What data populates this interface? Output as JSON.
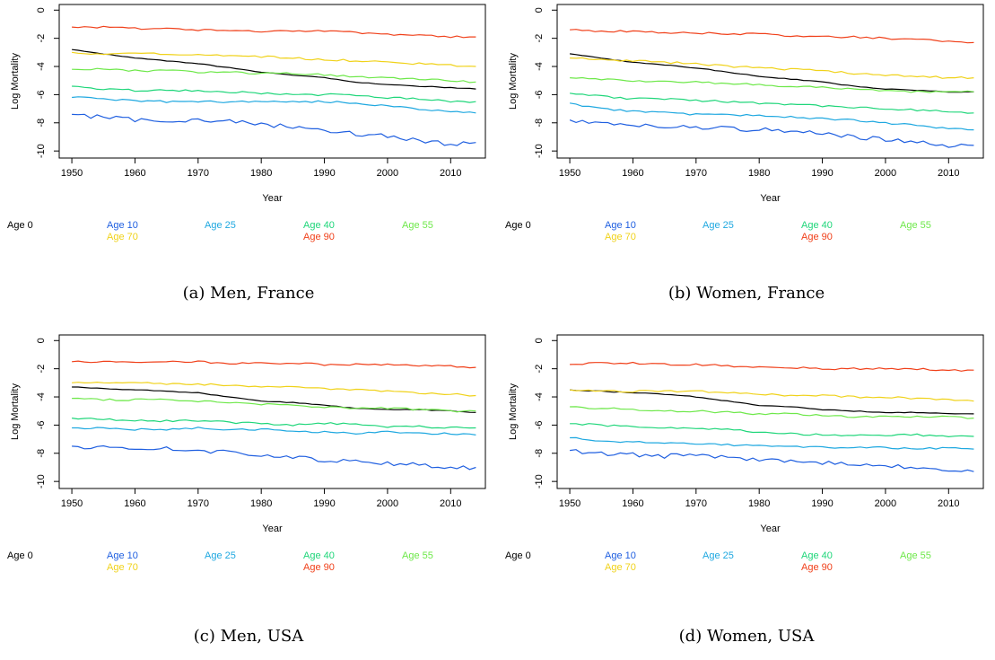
{
  "figure": {
    "xlabel": "Year",
    "ylabel": "Log Mortality",
    "xticks": [
      1950,
      1960,
      1970,
      1980,
      1990,
      2000,
      2010
    ],
    "yticks": [
      0,
      -2,
      -4,
      -6,
      -8,
      -10
    ],
    "xlim": [
      1948,
      2015.5
    ],
    "ylim": [
      -10.5,
      0.4
    ]
  },
  "chart_data": [
    {
      "type": "line",
      "caption": "(a) Men, France",
      "xlabel": "Year",
      "ylabel": "Log Mortality",
      "xlim": [
        1948,
        2015.5
      ],
      "ylim": [
        -10.5,
        0.4
      ],
      "x_range": [
        1950,
        2014
      ],
      "legend": "bottom",
      "series": [
        {
          "name": "Age 0",
          "color": "#000000",
          "x": [
            1950,
            1955,
            1960,
            1965,
            1970,
            1975,
            1980,
            1985,
            1990,
            1995,
            2000,
            2005,
            2010,
            2014
          ],
          "values": [
            -2.8,
            -3.1,
            -3.4,
            -3.6,
            -3.8,
            -4.1,
            -4.4,
            -4.6,
            -4.8,
            -5.1,
            -5.3,
            -5.4,
            -5.5,
            -5.6
          ]
        },
        {
          "name": "Age 10",
          "color": "#1f5fe0",
          "x": [
            1950,
            1955,
            1960,
            1965,
            1970,
            1975,
            1980,
            1985,
            1990,
            1995,
            2000,
            2005,
            2010,
            2014
          ],
          "values": [
            -7.4,
            -7.6,
            -7.8,
            -7.8,
            -7.8,
            -7.9,
            -8.1,
            -8.3,
            -8.5,
            -8.8,
            -8.9,
            -9.3,
            -9.5,
            -9.4
          ]
        },
        {
          "name": "Age 25",
          "color": "#1fa8e0",
          "x": [
            1950,
            1955,
            1960,
            1965,
            1970,
            1975,
            1980,
            1985,
            1990,
            1995,
            2000,
            2005,
            2010,
            2014
          ],
          "values": [
            -6.2,
            -6.3,
            -6.4,
            -6.5,
            -6.5,
            -6.5,
            -6.5,
            -6.5,
            -6.5,
            -6.6,
            -6.8,
            -7.0,
            -7.2,
            -7.3
          ]
        },
        {
          "name": "Age 40",
          "color": "#1fd67a",
          "x": [
            1950,
            1955,
            1960,
            1965,
            1970,
            1975,
            1980,
            1985,
            1990,
            1995,
            2000,
            2005,
            2010,
            2014
          ],
          "values": [
            -5.4,
            -5.6,
            -5.7,
            -5.7,
            -5.7,
            -5.8,
            -5.9,
            -6.0,
            -6.0,
            -6.0,
            -6.2,
            -6.3,
            -6.5,
            -6.5
          ]
        },
        {
          "name": "Age 55",
          "color": "#6ee84a",
          "x": [
            1950,
            1955,
            1960,
            1965,
            1970,
            1975,
            1980,
            1985,
            1990,
            1995,
            2000,
            2005,
            2010,
            2014
          ],
          "values": [
            -4.2,
            -4.2,
            -4.3,
            -4.3,
            -4.4,
            -4.4,
            -4.5,
            -4.5,
            -4.6,
            -4.7,
            -4.8,
            -4.9,
            -5.0,
            -5.1
          ]
        },
        {
          "name": "Age 70",
          "color": "#f0d21a",
          "x": [
            1950,
            1955,
            1960,
            1965,
            1970,
            1975,
            1980,
            1985,
            1990,
            1995,
            2000,
            2005,
            2010,
            2014
          ],
          "values": [
            -3.0,
            -3.1,
            -3.1,
            -3.1,
            -3.2,
            -3.2,
            -3.3,
            -3.4,
            -3.5,
            -3.6,
            -3.7,
            -3.8,
            -3.9,
            -4.0
          ]
        },
        {
          "name": "Age 90",
          "color": "#f0401a",
          "x": [
            1950,
            1955,
            1960,
            1965,
            1970,
            1975,
            1980,
            1985,
            1990,
            1995,
            2000,
            2005,
            2010,
            2014
          ],
          "values": [
            -1.2,
            -1.2,
            -1.3,
            -1.3,
            -1.4,
            -1.4,
            -1.5,
            -1.5,
            -1.5,
            -1.6,
            -1.7,
            -1.8,
            -1.9,
            -1.9
          ]
        }
      ]
    },
    {
      "type": "line",
      "caption": "(b) Women, France",
      "xlabel": "Year",
      "ylabel": "Log Mortality",
      "xlim": [
        1948,
        2015.5
      ],
      "ylim": [
        -10.5,
        0.4
      ],
      "x_range": [
        1950,
        2014
      ],
      "legend": "bottom",
      "series": [
        {
          "name": "Age 0",
          "color": "#000000",
          "x": [
            1950,
            1955,
            1960,
            1965,
            1970,
            1975,
            1980,
            1985,
            1990,
            1995,
            2000,
            2005,
            2010,
            2014
          ],
          "values": [
            -3.1,
            -3.4,
            -3.7,
            -3.9,
            -4.1,
            -4.4,
            -4.7,
            -4.9,
            -5.1,
            -5.4,
            -5.6,
            -5.7,
            -5.8,
            -5.8
          ]
        },
        {
          "name": "Age 10",
          "color": "#1f5fe0",
          "x": [
            1950,
            1955,
            1960,
            1965,
            1970,
            1975,
            1980,
            1985,
            1990,
            1995,
            2000,
            2005,
            2010,
            2014
          ],
          "values": [
            -7.8,
            -8.0,
            -8.2,
            -8.3,
            -8.3,
            -8.4,
            -8.5,
            -8.6,
            -8.8,
            -9.0,
            -9.2,
            -9.4,
            -9.6,
            -9.6
          ]
        },
        {
          "name": "Age 25",
          "color": "#1fa8e0",
          "x": [
            1950,
            1955,
            1960,
            1965,
            1970,
            1975,
            1980,
            1985,
            1990,
            1995,
            2000,
            2005,
            2010,
            2014
          ],
          "values": [
            -6.6,
            -7.0,
            -7.2,
            -7.3,
            -7.4,
            -7.4,
            -7.5,
            -7.6,
            -7.7,
            -7.8,
            -8.0,
            -8.2,
            -8.4,
            -8.5
          ]
        },
        {
          "name": "Age 40",
          "color": "#1fd67a",
          "x": [
            1950,
            1955,
            1960,
            1965,
            1970,
            1975,
            1980,
            1985,
            1990,
            1995,
            2000,
            2005,
            2010,
            2014
          ],
          "values": [
            -5.9,
            -6.1,
            -6.3,
            -6.3,
            -6.4,
            -6.5,
            -6.6,
            -6.7,
            -6.8,
            -6.9,
            -7.0,
            -7.1,
            -7.2,
            -7.3
          ]
        },
        {
          "name": "Age 55",
          "color": "#6ee84a",
          "x": [
            1950,
            1955,
            1960,
            1965,
            1970,
            1975,
            1980,
            1985,
            1990,
            1995,
            2000,
            2005,
            2010,
            2014
          ],
          "values": [
            -4.8,
            -4.9,
            -5.0,
            -5.1,
            -5.1,
            -5.2,
            -5.3,
            -5.4,
            -5.5,
            -5.6,
            -5.7,
            -5.8,
            -5.8,
            -5.8
          ]
        },
        {
          "name": "Age 70",
          "color": "#f0d21a",
          "x": [
            1950,
            1955,
            1960,
            1965,
            1970,
            1975,
            1980,
            1985,
            1990,
            1995,
            2000,
            2005,
            2010,
            2014
          ],
          "values": [
            -3.4,
            -3.5,
            -3.6,
            -3.7,
            -3.8,
            -4.0,
            -4.1,
            -4.2,
            -4.3,
            -4.5,
            -4.6,
            -4.7,
            -4.8,
            -4.8
          ]
        },
        {
          "name": "Age 90",
          "color": "#f0401a",
          "x": [
            1950,
            1955,
            1960,
            1965,
            1970,
            1975,
            1980,
            1985,
            1990,
            1995,
            2000,
            2005,
            2010,
            2014
          ],
          "values": [
            -1.4,
            -1.5,
            -1.5,
            -1.6,
            -1.6,
            -1.7,
            -1.7,
            -1.8,
            -1.9,
            -1.9,
            -2.0,
            -2.1,
            -2.2,
            -2.3
          ]
        }
      ]
    },
    {
      "type": "line",
      "caption": "(c) Men, USA",
      "xlabel": "Year",
      "ylabel": "Log Mortality",
      "xlim": [
        1948,
        2015.5
      ],
      "ylim": [
        -10.5,
        0.4
      ],
      "x_range": [
        1950,
        2014
      ],
      "legend": "bottom",
      "series": [
        {
          "name": "Age 0",
          "color": "#000000",
          "x": [
            1950,
            1955,
            1960,
            1965,
            1970,
            1975,
            1980,
            1985,
            1990,
            1995,
            2000,
            2005,
            2010,
            2014
          ],
          "values": [
            -3.3,
            -3.4,
            -3.5,
            -3.6,
            -3.7,
            -4.0,
            -4.3,
            -4.4,
            -4.6,
            -4.8,
            -4.9,
            -4.9,
            -5.0,
            -5.1
          ]
        },
        {
          "name": "Age 10",
          "color": "#1f5fe0",
          "x": [
            1950,
            1955,
            1960,
            1965,
            1970,
            1975,
            1980,
            1985,
            1990,
            1995,
            2000,
            2005,
            2010,
            2014
          ],
          "values": [
            -7.5,
            -7.6,
            -7.7,
            -7.7,
            -7.8,
            -7.9,
            -8.1,
            -8.3,
            -8.5,
            -8.6,
            -8.7,
            -8.8,
            -9.0,
            -9.0
          ]
        },
        {
          "name": "Age 25",
          "color": "#1fa8e0",
          "x": [
            1950,
            1955,
            1960,
            1965,
            1970,
            1975,
            1980,
            1985,
            1990,
            1995,
            2000,
            2005,
            2010,
            2014
          ],
          "values": [
            -6.2,
            -6.2,
            -6.3,
            -6.3,
            -6.2,
            -6.3,
            -6.3,
            -6.4,
            -6.5,
            -6.6,
            -6.5,
            -6.6,
            -6.6,
            -6.7
          ]
        },
        {
          "name": "Age 40",
          "color": "#1fd67a",
          "x": [
            1950,
            1955,
            1960,
            1965,
            1970,
            1975,
            1980,
            1985,
            1990,
            1995,
            2000,
            2005,
            2010,
            2014
          ],
          "values": [
            -5.5,
            -5.6,
            -5.7,
            -5.7,
            -5.7,
            -5.8,
            -5.9,
            -6.0,
            -5.9,
            -5.9,
            -6.1,
            -6.1,
            -6.2,
            -6.2
          ]
        },
        {
          "name": "Age 55",
          "color": "#6ee84a",
          "x": [
            1950,
            1955,
            1960,
            1965,
            1970,
            1975,
            1980,
            1985,
            1990,
            1995,
            2000,
            2005,
            2010,
            2014
          ],
          "values": [
            -4.1,
            -4.2,
            -4.2,
            -4.2,
            -4.3,
            -4.4,
            -4.5,
            -4.6,
            -4.7,
            -4.8,
            -4.8,
            -4.9,
            -5.0,
            -5.0
          ]
        },
        {
          "name": "Age 70",
          "color": "#f0d21a",
          "x": [
            1950,
            1955,
            1960,
            1965,
            1970,
            1975,
            1980,
            1985,
            1990,
            1995,
            2000,
            2005,
            2010,
            2014
          ],
          "values": [
            -3.0,
            -3.0,
            -3.0,
            -3.1,
            -3.1,
            -3.2,
            -3.3,
            -3.3,
            -3.4,
            -3.5,
            -3.6,
            -3.7,
            -3.8,
            -3.9
          ]
        },
        {
          "name": "Age 90",
          "color": "#f0401a",
          "x": [
            1950,
            1955,
            1960,
            1965,
            1970,
            1975,
            1980,
            1985,
            1990,
            1995,
            2000,
            2005,
            2010,
            2014
          ],
          "values": [
            -1.5,
            -1.5,
            -1.5,
            -1.5,
            -1.5,
            -1.6,
            -1.6,
            -1.6,
            -1.7,
            -1.7,
            -1.7,
            -1.8,
            -1.8,
            -1.9
          ]
        }
      ]
    },
    {
      "type": "line",
      "caption": "(d) Women, USA",
      "xlabel": "Year",
      "ylabel": "Log Mortality",
      "xlim": [
        1948,
        2015.5
      ],
      "ylim": [
        -10.5,
        0.4
      ],
      "x_range": [
        1950,
        2014
      ],
      "legend": "bottom",
      "series": [
        {
          "name": "Age 0",
          "color": "#000000",
          "x": [
            1950,
            1955,
            1960,
            1965,
            1970,
            1975,
            1980,
            1985,
            1990,
            1995,
            2000,
            2005,
            2010,
            2014
          ],
          "values": [
            -3.5,
            -3.6,
            -3.7,
            -3.8,
            -4.0,
            -4.3,
            -4.6,
            -4.7,
            -4.9,
            -5.0,
            -5.1,
            -5.1,
            -5.2,
            -5.2
          ]
        },
        {
          "name": "Age 10",
          "color": "#1f5fe0",
          "x": [
            1950,
            1955,
            1960,
            1965,
            1970,
            1975,
            1980,
            1985,
            1990,
            1995,
            2000,
            2005,
            2010,
            2014
          ],
          "values": [
            -7.8,
            -8.0,
            -8.1,
            -8.2,
            -8.2,
            -8.3,
            -8.5,
            -8.6,
            -8.7,
            -8.8,
            -8.9,
            -9.0,
            -9.2,
            -9.3
          ]
        },
        {
          "name": "Age 25",
          "color": "#1fa8e0",
          "x": [
            1950,
            1955,
            1960,
            1965,
            1970,
            1975,
            1980,
            1985,
            1990,
            1995,
            2000,
            2005,
            2010,
            2014
          ],
          "values": [
            -6.9,
            -7.1,
            -7.2,
            -7.3,
            -7.3,
            -7.4,
            -7.5,
            -7.5,
            -7.6,
            -7.6,
            -7.6,
            -7.7,
            -7.6,
            -7.7
          ]
        },
        {
          "name": "Age 40",
          "color": "#1fd67a",
          "x": [
            1950,
            1955,
            1960,
            1965,
            1970,
            1975,
            1980,
            1985,
            1990,
            1995,
            2000,
            2005,
            2010,
            2014
          ],
          "values": [
            -5.9,
            -6.0,
            -6.1,
            -6.2,
            -6.2,
            -6.3,
            -6.5,
            -6.6,
            -6.7,
            -6.7,
            -6.7,
            -6.7,
            -6.8,
            -6.8
          ]
        },
        {
          "name": "Age 55",
          "color": "#6ee84a",
          "x": [
            1950,
            1955,
            1960,
            1965,
            1970,
            1975,
            1980,
            1985,
            1990,
            1995,
            2000,
            2005,
            2010,
            2014
          ],
          "values": [
            -4.7,
            -4.8,
            -4.9,
            -5.0,
            -5.0,
            -5.1,
            -5.2,
            -5.2,
            -5.3,
            -5.4,
            -5.4,
            -5.4,
            -5.4,
            -5.5
          ]
        },
        {
          "name": "Age 70",
          "color": "#f0d21a",
          "x": [
            1950,
            1955,
            1960,
            1965,
            1970,
            1975,
            1980,
            1985,
            1990,
            1995,
            2000,
            2005,
            2010,
            2014
          ],
          "values": [
            -3.5,
            -3.6,
            -3.6,
            -3.6,
            -3.6,
            -3.7,
            -3.8,
            -3.9,
            -3.9,
            -4.0,
            -4.0,
            -4.1,
            -4.2,
            -4.3
          ]
        },
        {
          "name": "Age 90",
          "color": "#f0401a",
          "x": [
            1950,
            1955,
            1960,
            1965,
            1970,
            1975,
            1980,
            1985,
            1990,
            1995,
            2000,
            2005,
            2010,
            2014
          ],
          "values": [
            -1.7,
            -1.6,
            -1.6,
            -1.7,
            -1.7,
            -1.8,
            -1.9,
            -1.9,
            -2.0,
            -2.0,
            -2.0,
            -2.0,
            -2.1,
            -2.1
          ]
        }
      ]
    }
  ]
}
